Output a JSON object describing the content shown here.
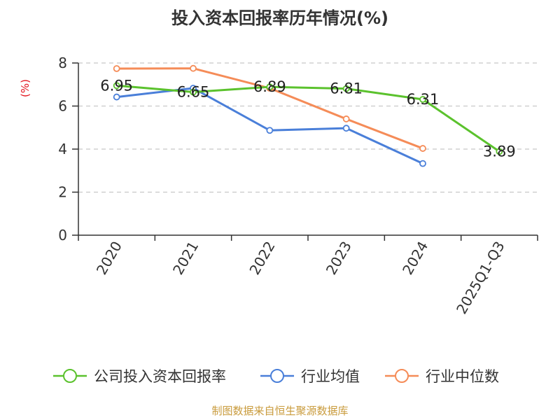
{
  "title": "投入资本回报率历年情况(%)",
  "unit": "(%)",
  "source": "制图数据来自恒生聚源数据库",
  "chart_data": {
    "type": "line",
    "categories": [
      "2020",
      "2021",
      "2022",
      "2023",
      "2024",
      "2025Q1-Q3"
    ],
    "ylim": [
      0,
      8
    ],
    "yticks": [
      0,
      2,
      4,
      6,
      8
    ],
    "grid": true,
    "legend_position": "bottom",
    "series": [
      {
        "name": "公司投入资本回报率",
        "color": "#5bc22d",
        "values": [
          6.95,
          6.65,
          6.89,
          6.81,
          6.31,
          3.89
        ],
        "labels": [
          "6.95",
          "6.65",
          "6.89",
          "6.81",
          "6.31",
          "3.89"
        ]
      },
      {
        "name": "行业均值",
        "color": "#4a7fd9",
        "values": [
          6.42,
          6.83,
          4.87,
          4.97,
          3.33,
          null
        ]
      },
      {
        "name": "行业中位数",
        "color": "#f58c58",
        "values": [
          7.74,
          7.75,
          6.83,
          5.4,
          4.03,
          null
        ]
      }
    ]
  }
}
